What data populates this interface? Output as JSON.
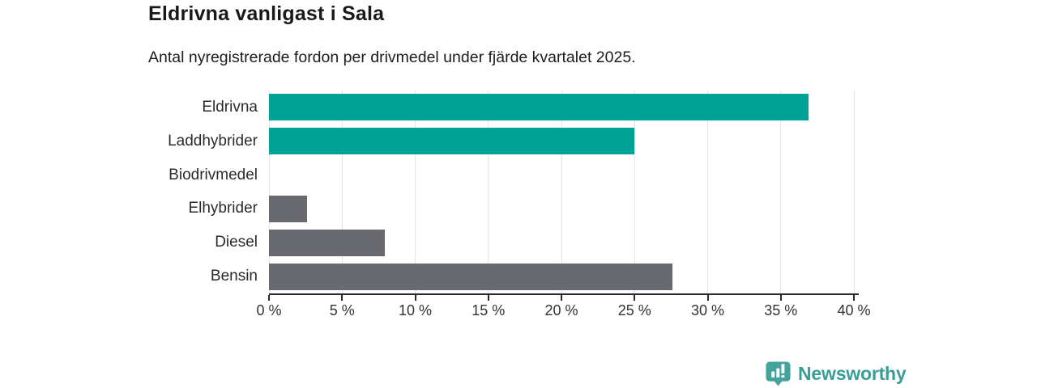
{
  "header": {
    "title": "Eldrivna vanligast i Sala",
    "subtitle": "Antal nyregistrerade fordon per drivmedel under fjärde kvartalet 2025."
  },
  "chart_data": {
    "type": "bar",
    "orientation": "horizontal",
    "title": "Eldrivna vanligast i Sala",
    "subtitle": "Antal nyregistrerade fordon per drivmedel under fjärde kvartalet 2025.",
    "categories": [
      "Eldrivna",
      "Laddhybrider",
      "Biodrivmedel",
      "Elhybrider",
      "Diesel",
      "Bensin"
    ],
    "values": [
      36.9,
      25.0,
      0,
      2.6,
      7.9,
      27.6
    ],
    "bar_colors": [
      "#00a296",
      "#00a296",
      null,
      "#696a6f",
      "#696a6f",
      "#696a6f"
    ],
    "unit": "%",
    "xlabel": "",
    "ylabel": "",
    "xlim": [
      0,
      40
    ],
    "x_ticks": [
      0,
      5,
      10,
      15,
      20,
      25,
      30,
      35,
      40
    ],
    "x_tick_labels": [
      "0 %",
      "5 %",
      "10 %",
      "15 %",
      "20 %",
      "25 %",
      "30 %",
      "35 %",
      "40 %"
    ],
    "grid": "vertical-gridlines",
    "legend": "none"
  },
  "branding": {
    "logo_text": "Newsworthy",
    "logo_text_color": "#399e97",
    "logo_icon_color": "#45a39b",
    "logo_icon": "speech-bubble-bar-chart-exclamation"
  },
  "colors": {
    "accent_teal": "#00a296",
    "neutral_gray": "#696a6f",
    "gridline": "#e4e4e4",
    "axis": "#2a2a2a",
    "background": "#ffffff",
    "text": "#191919"
  }
}
